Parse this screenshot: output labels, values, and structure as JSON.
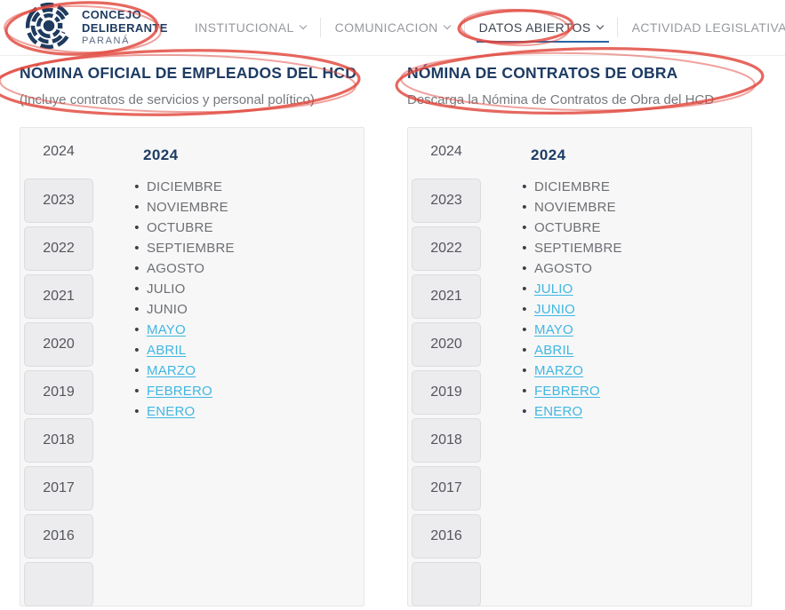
{
  "logo": {
    "title_line1": "CONCEJO",
    "title_line2": "DELIBERANTE",
    "subtitle": "PARANÁ"
  },
  "nav": {
    "items": [
      {
        "label": "INSTITUCIONAL",
        "active": false
      },
      {
        "label": "COMUNICACION",
        "active": false
      },
      {
        "label": "DATOS ABIERTOS",
        "active": true
      },
      {
        "label": "ACTIVIDAD LEGISLATIVA",
        "active": false
      }
    ]
  },
  "panels": [
    {
      "title": "NÓMINA OFICIAL DE EMPLEADOS DEL HCD",
      "subtitle": "(Incluye contratos de servicios y personal político)",
      "years": [
        "2024",
        "2023",
        "2022",
        "2021",
        "2020",
        "2019",
        "2018",
        "2017",
        "2016"
      ],
      "active_year": "2024",
      "content_heading": "2024",
      "months": [
        {
          "label": "DICIEMBRE",
          "link": false
        },
        {
          "label": "NOVIEMBRE",
          "link": false
        },
        {
          "label": "OCTUBRE",
          "link": false
        },
        {
          "label": "SEPTIEMBRE",
          "link": false
        },
        {
          "label": "AGOSTO",
          "link": false
        },
        {
          "label": "JULIO",
          "link": false
        },
        {
          "label": "JUNIO",
          "link": false
        },
        {
          "label": "MAYO",
          "link": true
        },
        {
          "label": "ABRIL",
          "link": true
        },
        {
          "label": "MARZO",
          "link": true
        },
        {
          "label": "FEBRERO",
          "link": true
        },
        {
          "label": "ENERO",
          "link": true
        }
      ]
    },
    {
      "title": "NÓMINA DE CONTRATOS DE OBRA",
      "subtitle": "Descarga la Nómina de Contratos de Obra del HCD",
      "years": [
        "2024",
        "2023",
        "2022",
        "2021",
        "2020",
        "2019",
        "2018",
        "2017",
        "2016"
      ],
      "active_year": "2024",
      "content_heading": "2024",
      "months": [
        {
          "label": "DICIEMBRE",
          "link": false
        },
        {
          "label": "NOVIEMBRE",
          "link": false
        },
        {
          "label": "OCTUBRE",
          "link": false
        },
        {
          "label": "SEPTIEMBRE",
          "link": false
        },
        {
          "label": "AGOSTO",
          "link": false
        },
        {
          "label": "JULIO",
          "link": true
        },
        {
          "label": "JUNIO",
          "link": true
        },
        {
          "label": "MAYO",
          "link": true
        },
        {
          "label": "ABRIL",
          "link": true
        },
        {
          "label": "MARZO",
          "link": true
        },
        {
          "label": "FEBRERO",
          "link": true
        },
        {
          "label": "ENERO",
          "link": true
        }
      ]
    }
  ],
  "annotations": {
    "style": "hand-drawn red ellipses",
    "circled": [
      "site-logo",
      "nav-item-datos-abiertos",
      "empleados-heading",
      "contratos-heading"
    ]
  },
  "colors": {
    "navy": "#1e3c64",
    "link": "#41b7e1",
    "annotation": "#e0463b",
    "underline": "#2b63a5"
  }
}
